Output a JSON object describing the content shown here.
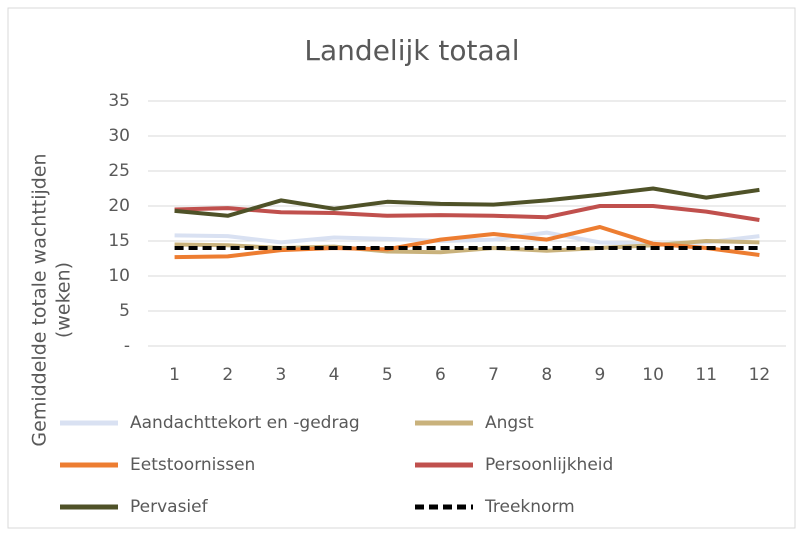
{
  "chart_data": {
    "type": "line",
    "title": "Landelijk totaal",
    "y_label": [
      "Gemiddelde totale wachttijden",
      "(weken)"
    ],
    "categories": [
      "1",
      "2",
      "3",
      "4",
      "5",
      "6",
      "7",
      "8",
      "9",
      "10",
      "11",
      "12"
    ],
    "ylim": [
      0,
      35
    ],
    "yticks": [
      {
        "value": 0,
        "label": "-"
      },
      5,
      10,
      15,
      20,
      25,
      30,
      35
    ],
    "grid": true,
    "legend": "bottom",
    "series": [
      {
        "name": "Aandachttekort en -gedrag",
        "color": "#d9e1f2",
        "values": [
          15.8,
          15.7,
          14.8,
          15.5,
          15.3,
          15.0,
          15.2,
          16.2,
          14.8,
          14.5,
          14.8,
          15.7
        ]
      },
      {
        "name": "Angst",
        "color": "#c9b27c",
        "values": [
          14.5,
          14.4,
          14.0,
          14.2,
          13.5,
          13.4,
          14.0,
          13.6,
          14.0,
          14.4,
          15.0,
          14.8
        ]
      },
      {
        "name": "Eetstoornissen",
        "color": "#ed7d31",
        "values": [
          12.7,
          12.8,
          13.7,
          14.0,
          13.8,
          15.2,
          16.0,
          15.2,
          17.0,
          14.6,
          14.0,
          13.0
        ]
      },
      {
        "name": "Persoonlijkheid",
        "color": "#c0504d",
        "values": [
          19.5,
          19.7,
          19.1,
          19.0,
          18.6,
          18.7,
          18.6,
          18.4,
          20.0,
          20.0,
          19.2,
          18.0
        ]
      },
      {
        "name": "Pervasief",
        "color": "#4f5228",
        "values": [
          19.3,
          18.6,
          20.8,
          19.6,
          20.6,
          20.3,
          20.2,
          20.8,
          21.6,
          22.5,
          21.2,
          22.3
        ]
      },
      {
        "name": "Treeknorm",
        "color": "#000000",
        "dashed": true,
        "values": [
          14,
          14,
          14,
          14,
          14,
          14,
          14,
          14,
          14,
          14,
          14,
          14
        ]
      }
    ]
  }
}
